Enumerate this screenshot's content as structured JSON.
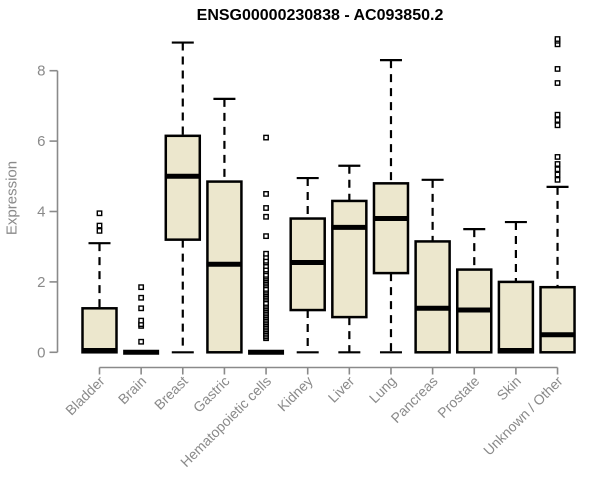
{
  "title": "ENSG00000230838 - AC093850.2",
  "chart_data": {
    "type": "boxplot",
    "title": "ENSG00000230838 - AC093850.2",
    "xlabel": "",
    "ylabel": "Expression",
    "ylim": [
      0,
      9
    ],
    "yticks": [
      "0",
      "2",
      "4",
      "6",
      "8"
    ],
    "grid": false,
    "legend": null,
    "colors": {
      "box_fill": "#ECE7CD",
      "box_stroke": "#000000",
      "median": "#000000",
      "whisker": "#000000",
      "axis": "#8A8A8A",
      "title": "#000000",
      "background": "#FFFFFF"
    },
    "categories": [
      "Bladder",
      "Brain",
      "Breast",
      "Gastric",
      "Hematopoietic cells",
      "Kidney",
      "Liver",
      "Lung",
      "Pancreas",
      "Prostate",
      "Skin",
      "Unknown / Other"
    ],
    "boxes": [
      {
        "label": "Bladder",
        "whisker_low": 0,
        "q1": 0,
        "median": 0.05,
        "q3": 1.25,
        "whisker_high": 3.1,
        "outliers": [
          3.45,
          3.6,
          3.95
        ]
      },
      {
        "label": "Brain",
        "whisker_low": 0,
        "q1": 0,
        "median": 0,
        "q3": 0,
        "whisker_high": 0,
        "outliers": [
          0.3,
          0.75,
          0.8,
          0.9,
          1.25,
          1.55,
          1.85
        ]
      },
      {
        "label": "Breast",
        "whisker_low": 0,
        "q1": 3.2,
        "median": 5.0,
        "q3": 6.15,
        "whisker_high": 8.8,
        "outliers": []
      },
      {
        "label": "Gastric",
        "whisker_low": 0,
        "q1": 0,
        "median": 2.5,
        "q3": 4.85,
        "whisker_high": 7.2,
        "outliers": []
      },
      {
        "label": "Hematopoietic cells",
        "whisker_low": 0,
        "q1": 0,
        "median": 0,
        "q3": 0,
        "whisker_high": 0,
        "outliers": [
          0.4,
          0.45,
          0.5,
          0.55,
          0.6,
          0.65,
          0.7,
          0.75,
          0.8,
          0.85,
          0.9,
          0.95,
          1.0,
          1.05,
          1.1,
          1.15,
          1.2,
          1.25,
          1.3,
          1.35,
          1.4,
          1.5,
          1.55,
          1.6,
          1.65,
          1.7,
          1.75,
          1.8,
          1.9,
          1.95,
          2.0,
          2.05,
          2.1,
          2.15,
          2.2,
          2.3,
          2.35,
          2.45,
          2.55,
          2.6,
          2.7,
          2.8,
          3.3,
          3.85,
          4.1,
          4.5,
          6.1
        ]
      },
      {
        "label": "Kidney",
        "whisker_low": 0,
        "q1": 1.2,
        "median": 2.55,
        "q3": 3.8,
        "whisker_high": 4.95,
        "outliers": []
      },
      {
        "label": "Liver",
        "whisker_low": 0,
        "q1": 1.0,
        "median": 3.55,
        "q3": 4.3,
        "whisker_high": 5.3,
        "outliers": []
      },
      {
        "label": "Lung",
        "whisker_low": 0,
        "q1": 2.25,
        "median": 3.8,
        "q3": 4.8,
        "whisker_high": 8.3,
        "outliers": []
      },
      {
        "label": "Pancreas",
        "whisker_low": 0,
        "q1": 0,
        "median": 1.25,
        "q3": 3.15,
        "whisker_high": 4.9,
        "outliers": []
      },
      {
        "label": "Prostate",
        "whisker_low": 0,
        "q1": 0,
        "median": 1.2,
        "q3": 2.35,
        "whisker_high": 3.5,
        "outliers": []
      },
      {
        "label": "Skin",
        "whisker_low": 0,
        "q1": 0,
        "median": 0.05,
        "q3": 2.0,
        "whisker_high": 3.7,
        "outliers": []
      },
      {
        "label": "Unknown / Other",
        "whisker_low": 0,
        "q1": 0,
        "median": 0.5,
        "q3": 1.85,
        "whisker_high": 4.7,
        "outliers": [
          4.9,
          5.05,
          5.2,
          5.35,
          5.55,
          6.45,
          6.6,
          6.75,
          7.65,
          8.05,
          8.75,
          8.85,
          8.9
        ]
      }
    ]
  }
}
